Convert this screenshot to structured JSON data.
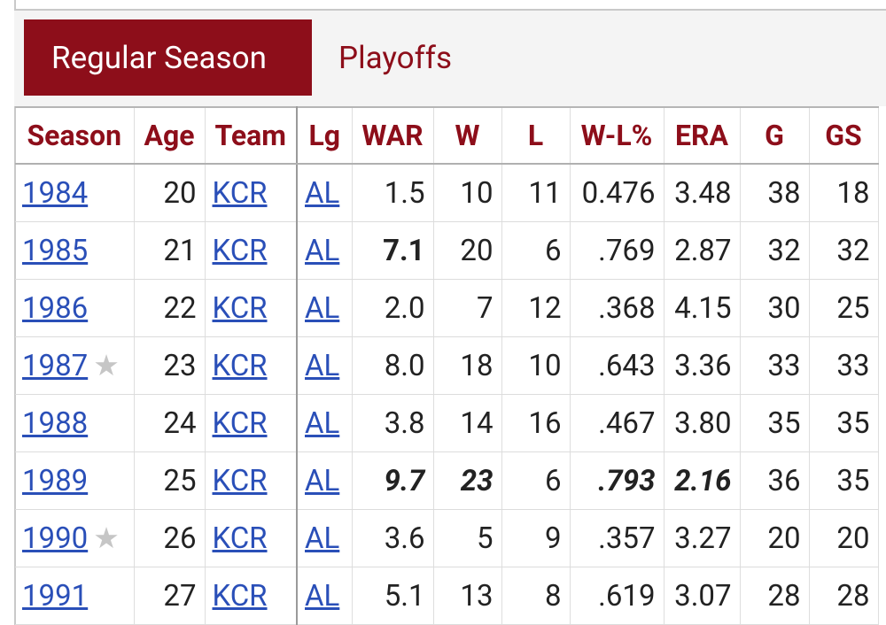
{
  "tabs": {
    "regular": "Regular Season",
    "playoffs": "Playoffs"
  },
  "columns": [
    "Season",
    "Age",
    "Team",
    "Lg",
    "WAR",
    "W",
    "L",
    "W-L%",
    "ERA",
    "G",
    "GS"
  ],
  "star_glyph": "★",
  "rows": [
    {
      "season": "1984",
      "age": "20",
      "team": "KCR",
      "lg": "AL",
      "war": "1.5",
      "w": "10",
      "l": "11",
      "wlpct": "0.476",
      "era": "3.48",
      "g": "38",
      "gs": "18",
      "star": false,
      "fmt": {}
    },
    {
      "season": "1985",
      "age": "21",
      "team": "KCR",
      "lg": "AL",
      "war": "7.1",
      "w": "20",
      "l": "6",
      "wlpct": ".769",
      "era": "2.87",
      "g": "32",
      "gs": "32",
      "star": false,
      "fmt": {
        "war": "b"
      }
    },
    {
      "season": "1986",
      "age": "22",
      "team": "KCR",
      "lg": "AL",
      "war": "2.0",
      "w": "7",
      "l": "12",
      "wlpct": ".368",
      "era": "4.15",
      "g": "30",
      "gs": "25",
      "star": false,
      "fmt": {}
    },
    {
      "season": "1987",
      "age": "23",
      "team": "KCR",
      "lg": "AL",
      "war": "8.0",
      "w": "18",
      "l": "10",
      "wlpct": ".643",
      "era": "3.36",
      "g": "33",
      "gs": "33",
      "star": true,
      "fmt": {}
    },
    {
      "season": "1988",
      "age": "24",
      "team": "KCR",
      "lg": "AL",
      "war": "3.8",
      "w": "14",
      "l": "16",
      "wlpct": ".467",
      "era": "3.80",
      "g": "35",
      "gs": "35",
      "star": false,
      "fmt": {}
    },
    {
      "season": "1989",
      "age": "25",
      "team": "KCR",
      "lg": "AL",
      "war": "9.7",
      "w": "23",
      "l": "6",
      "wlpct": ".793",
      "era": "2.16",
      "g": "36",
      "gs": "35",
      "star": false,
      "fmt": {
        "war": "bi",
        "w": "bi",
        "wlpct": "bi",
        "era": "bi"
      }
    },
    {
      "season": "1990",
      "age": "26",
      "team": "KCR",
      "lg": "AL",
      "war": "3.6",
      "w": "5",
      "l": "9",
      "wlpct": ".357",
      "era": "3.27",
      "g": "20",
      "gs": "20",
      "star": true,
      "fmt": {}
    },
    {
      "season": "1991",
      "age": "27",
      "team": "KCR",
      "lg": "AL",
      "war": "5.1",
      "w": "13",
      "l": "8",
      "wlpct": ".619",
      "era": "3.07",
      "g": "28",
      "gs": "28",
      "star": false,
      "fmt": {}
    }
  ],
  "colors": {
    "accent": "#8d0e1a",
    "link": "#2a4fb8",
    "star": "#c6c6c6",
    "header_bg": "#f4f4f4"
  }
}
